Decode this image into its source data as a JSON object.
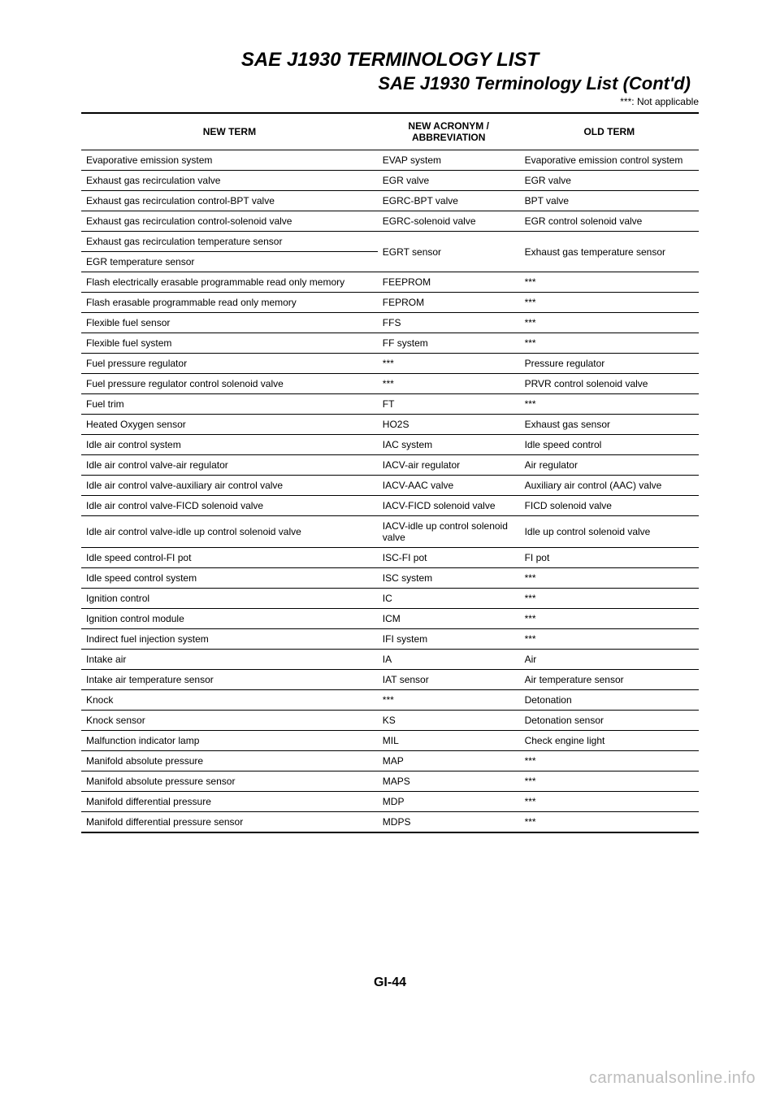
{
  "header": {
    "title": "SAE J1930 TERMINOLOGY LIST",
    "subtitle": "SAE J1930 Terminology List (Cont'd)",
    "note": "***: Not applicable"
  },
  "table": {
    "columns": [
      "NEW TERM",
      "NEW ACRONYM / ABBREVIATION",
      "OLD TERM"
    ],
    "rows": [
      [
        "Evaporative emission system",
        "EVAP system",
        "Evaporative emission control system"
      ],
      [
        "Exhaust gas recirculation valve",
        "EGR valve",
        "EGR valve"
      ],
      [
        "Exhaust gas recirculation control-BPT valve",
        "EGRC-BPT valve",
        "BPT valve"
      ],
      [
        "Exhaust gas recirculation control-solenoid valve",
        "EGRC-solenoid valve",
        "EGR control solenoid valve"
      ],
      [
        "Exhaust gas recirculation temperature sensor",
        "EGRT sensor",
        "Exhaust gas temperature sensor"
      ],
      [
        "EGR temperature sensor",
        "",
        ""
      ],
      [
        "Flash electrically erasable programmable read only memory",
        "FEEPROM",
        "***"
      ],
      [
        "Flash erasable programmable read only memory",
        "FEPROM",
        "***"
      ],
      [
        "Flexible fuel sensor",
        "FFS",
        "***"
      ],
      [
        "Flexible fuel system",
        "FF system",
        "***"
      ],
      [
        "Fuel pressure regulator",
        "***",
        "Pressure regulator"
      ],
      [
        "Fuel pressure regulator control solenoid valve",
        "***",
        "PRVR control solenoid valve"
      ],
      [
        "Fuel trim",
        "FT",
        "***"
      ],
      [
        "Heated Oxygen sensor",
        "HO2S",
        "Exhaust gas sensor"
      ],
      [
        "Idle air control system",
        "IAC system",
        "Idle speed control"
      ],
      [
        "Idle air control valve-air regulator",
        "IACV-air regulator",
        "Air regulator"
      ],
      [
        "Idle air control valve-auxiliary air control valve",
        "IACV-AAC valve",
        "Auxiliary air control (AAC) valve"
      ],
      [
        "Idle air control valve-FICD solenoid valve",
        "IACV-FICD solenoid valve",
        "FICD solenoid valve"
      ],
      [
        "Idle air control valve-idle up control solenoid valve",
        "IACV-idle up control solenoid valve",
        "Idle up control solenoid valve"
      ],
      [
        "Idle speed control-FI pot",
        "ISC-FI pot",
        "FI pot"
      ],
      [
        "Idle speed control system",
        "ISC system",
        "***"
      ],
      [
        "Ignition control",
        "IC",
        "***"
      ],
      [
        "Ignition control module",
        "ICM",
        "***"
      ],
      [
        "Indirect fuel injection system",
        "IFI system",
        "***"
      ],
      [
        "Intake air",
        "IA",
        "Air"
      ],
      [
        "Intake air temperature sensor",
        "IAT sensor",
        "Air temperature sensor"
      ],
      [
        "Knock",
        "***",
        "Detonation"
      ],
      [
        "Knock sensor",
        "KS",
        "Detonation sensor"
      ],
      [
        "Malfunction indicator lamp",
        "MIL",
        "Check engine light"
      ],
      [
        "Manifold absolute pressure",
        "MAP",
        "***"
      ],
      [
        "Manifold absolute pressure sensor",
        "MAPS",
        "***"
      ],
      [
        "Manifold differential pressure",
        "MDP",
        "***"
      ],
      [
        "Manifold differential pressure sensor",
        "MDPS",
        "***"
      ]
    ]
  },
  "footer": {
    "page_number": "GI-44",
    "watermark": "carmanualsonline.info"
  }
}
